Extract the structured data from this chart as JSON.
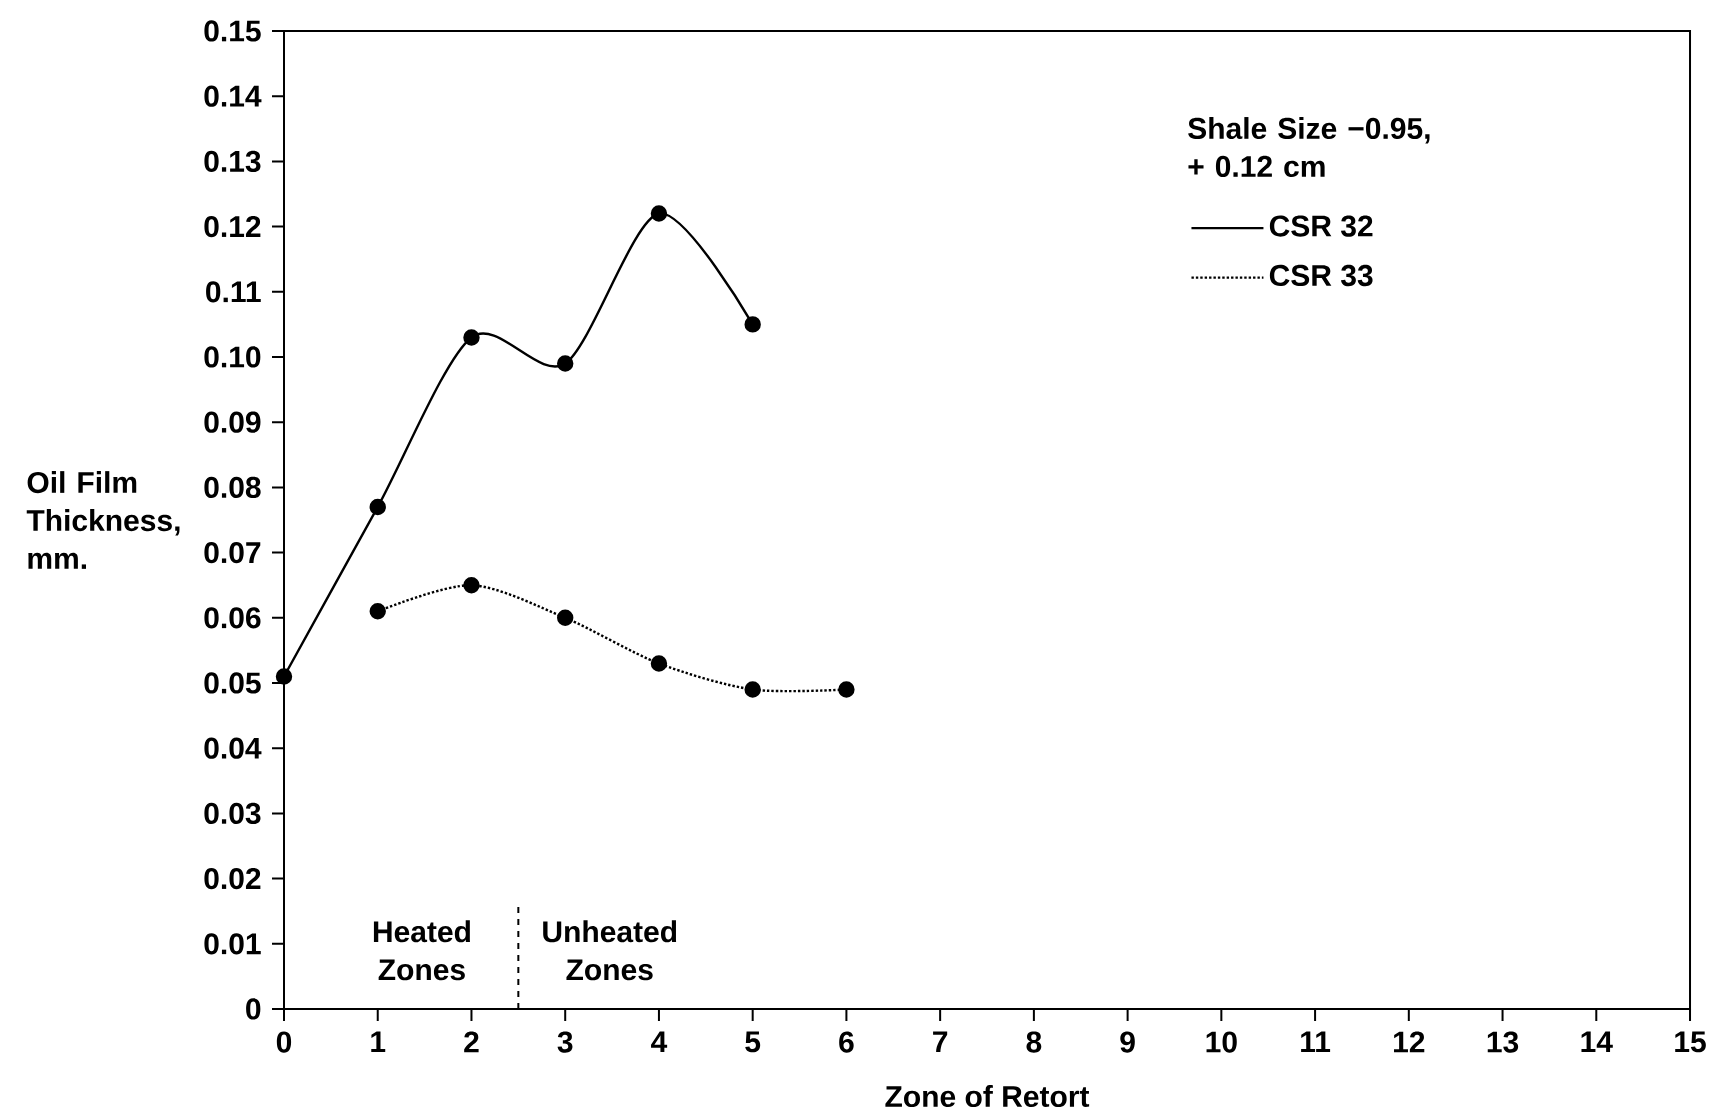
{
  "chart_data": {
    "type": "line",
    "xlabel": "Zone of Retort",
    "ylabel": "Oil Film Thickness, mm.",
    "legend_title": "Shale Size −0.95, + 0.12 cm",
    "legend": "top right",
    "marker": "circle",
    "xlim": [
      0,
      15
    ],
    "xticks": [
      0,
      1,
      2,
      3,
      4,
      5,
      6,
      7,
      8,
      9,
      10,
      11,
      12,
      13,
      14,
      15
    ],
    "ylim": [
      0,
      0.15
    ],
    "yticks": [
      0,
      0.01,
      0.02,
      0.03,
      0.04,
      0.05,
      0.06,
      0.07,
      0.08,
      0.09,
      {
        "value": 0.1,
        "label": "0.10"
      },
      0.11,
      0.12,
      0.13,
      0.14,
      0.15
    ],
    "series": [
      {
        "name": "CSR 32",
        "color": "#000000",
        "line_style": "solid",
        "x": [
          0,
          1,
          2,
          3,
          4,
          5
        ],
        "values": [
          0.051,
          0.077,
          0.103,
          0.099,
          0.122,
          0.105
        ]
      },
      {
        "name": "CSR 33",
        "color": "#000000",
        "line_style": "dotted",
        "x": [
          1,
          2,
          3,
          4,
          5,
          6
        ],
        "values": [
          0.061,
          0.065,
          0.06,
          0.053,
          0.049,
          0.049
        ]
      }
    ],
    "ref_lines": [
      {
        "axis": "x",
        "value": 2.5,
        "line_style": "dashed"
      }
    ],
    "annotations": [
      "Heated Zones",
      "Unheated Zones"
    ]
  }
}
